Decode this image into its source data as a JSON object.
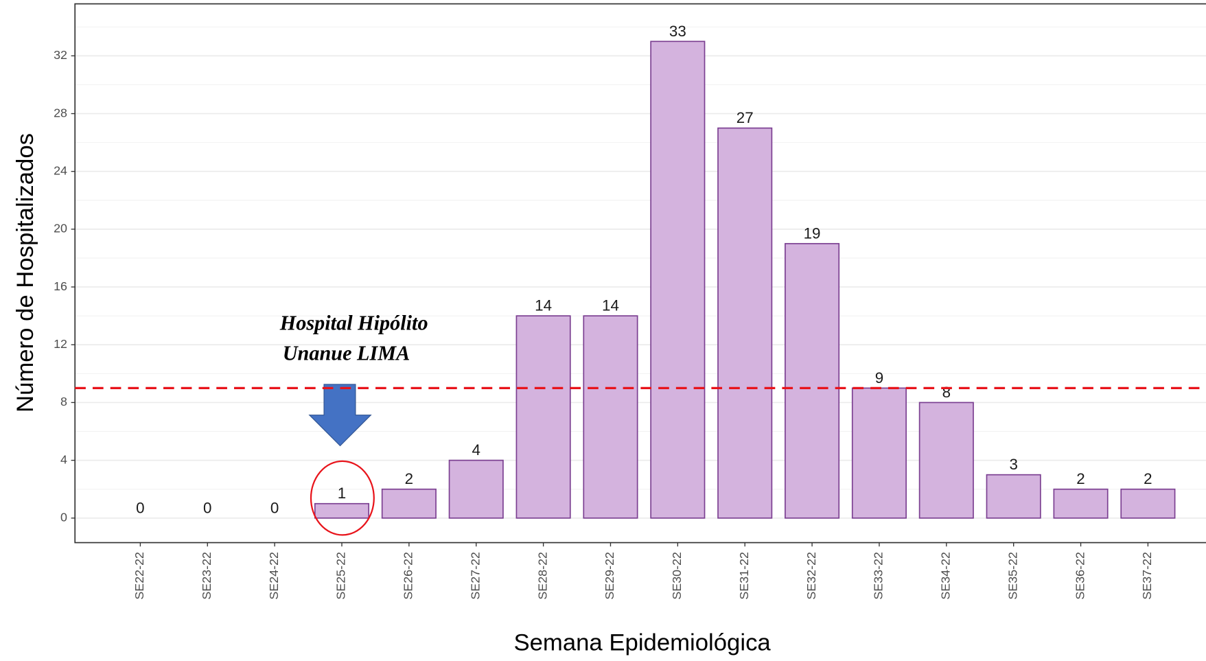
{
  "chart_data": {
    "type": "bar",
    "x_label": "Semana Epidemiológica",
    "y_label": "Número de Hospitalizados",
    "categories": [
      "SE22-22",
      "SE23-22",
      "SE24-22",
      "SE25-22",
      "SE26-22",
      "SE27-22",
      "SE28-22",
      "SE29-22",
      "SE30-22",
      "SE31-22",
      "SE32-22",
      "SE33-22",
      "SE34-22",
      "SE35-22",
      "SE36-22",
      "SE37-22"
    ],
    "values": [
      0,
      0,
      0,
      1,
      2,
      4,
      14,
      14,
      33,
      27,
      19,
      9,
      8,
      3,
      2,
      2
    ],
    "color": "#d4b3de",
    "edge_color": "#7b3f91",
    "ylim": [
      -1.7,
      35.6
    ],
    "yticks": [
      0,
      4,
      8,
      12,
      16,
      20,
      24,
      28,
      32
    ],
    "minor_yticks": [
      2,
      6,
      10,
      14,
      18,
      22,
      26,
      30,
      34
    ],
    "grid": true,
    "reference_line": 9,
    "reference_color": "#e8141b",
    "annotation": [
      "Hospital Hipólito",
      "Unanue LIMA"
    ]
  }
}
